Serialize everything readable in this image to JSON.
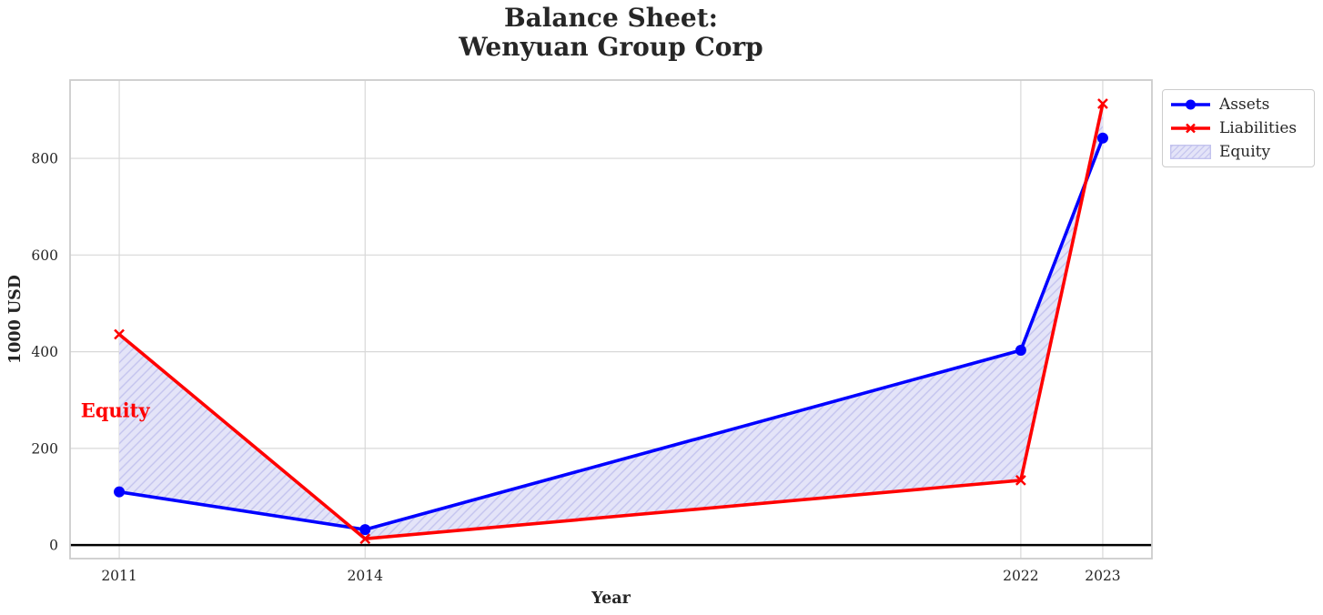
{
  "chart": {
    "title_lines": [
      "Balance Sheet:",
      "Wenyuan Group Corp"
    ]
  },
  "chart_data": {
    "type": "line",
    "title": "Balance Sheet:\nWenyuan Group Corp",
    "xlabel": "Year",
    "ylabel": "1000 USD",
    "x": [
      2011,
      2014,
      2022,
      2023
    ],
    "series": [
      {
        "name": "Assets",
        "color": "#0000ff",
        "marker": "circle",
        "values": [
          110,
          32,
          403,
          842
        ]
      },
      {
        "name": "Liabilities",
        "color": "#ff0000",
        "marker": "x",
        "values": [
          436,
          13,
          134,
          913
        ]
      }
    ],
    "equity_fill": {
      "label": "Equity",
      "between": [
        "Assets",
        "Liabilities"
      ],
      "fill_color": "#e4e4f8",
      "hatch": "/",
      "hatch_color": "#c3c3ee"
    },
    "annotation": {
      "text": "Equity",
      "color": "#ff0000",
      "x": 2010.53,
      "y": 278
    },
    "axhline": {
      "y": 0,
      "color": "#000000",
      "width": 2.6
    },
    "xticks": [
      2011,
      2014,
      2022,
      2023
    ],
    "yticks": [
      0,
      200,
      400,
      600,
      800
    ],
    "xlim": [
      2010.4,
      2023.6
    ],
    "ylim": [
      -28,
      962
    ],
    "grid": true,
    "legend_position": "outside-top-right",
    "colors": {
      "grid": "#d8d8d8",
      "spine": "#cccccc",
      "text": "#262626",
      "background": "#ffffff"
    }
  }
}
